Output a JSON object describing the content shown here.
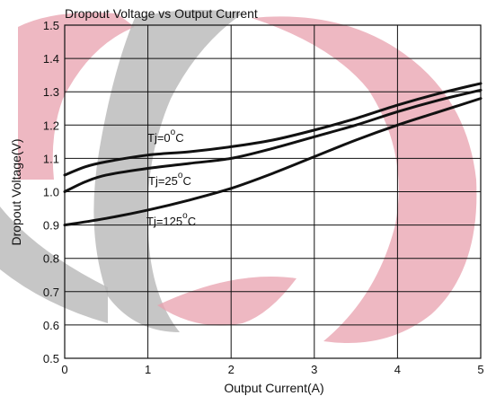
{
  "chart_data": {
    "type": "line",
    "title": "Dropout Voltage vs Output Current",
    "xlabel": "Output Current(A)",
    "ylabel": "Dropout Voltage(V)",
    "xlim": [
      0,
      5
    ],
    "ylim": [
      0.5,
      1.5
    ],
    "x_ticks": [
      "0",
      "1",
      "2",
      "3",
      "4",
      "5"
    ],
    "y_ticks": [
      "0.5",
      "0.6",
      "0.7",
      "0.8",
      "0.9",
      "1.0",
      "1.1",
      "1.2",
      "1.3",
      "1.4",
      "1.5"
    ],
    "grid": true,
    "series": [
      {
        "label": "Tj=0",
        "label_sup": "o",
        "label_unit": "C",
        "color": "#111111",
        "x": [
          0,
          0.25,
          0.5,
          1,
          1.5,
          2,
          2.5,
          3,
          3.5,
          4,
          4.5,
          5
        ],
        "y": [
          1.05,
          1.075,
          1.09,
          1.11,
          1.12,
          1.135,
          1.155,
          1.185,
          1.22,
          1.26,
          1.295,
          1.325
        ]
      },
      {
        "label": "Tj=25",
        "label_sup": "o",
        "label_unit": "C",
        "color": "#111111",
        "x": [
          0,
          0.25,
          0.5,
          1,
          1.5,
          2,
          2.5,
          3,
          3.5,
          4,
          4.5,
          5
        ],
        "y": [
          1.0,
          1.03,
          1.05,
          1.07,
          1.085,
          1.1,
          1.13,
          1.165,
          1.2,
          1.24,
          1.275,
          1.305
        ]
      },
      {
        "label": "Tj=125",
        "label_sup": "o",
        "label_unit": "C",
        "color": "#111111",
        "x": [
          0,
          0.5,
          1,
          1.5,
          2,
          2.5,
          3,
          3.5,
          4,
          4.5,
          5
        ],
        "y": [
          0.9,
          0.92,
          0.945,
          0.975,
          1.01,
          1.055,
          1.105,
          1.155,
          1.2,
          1.24,
          1.28
        ]
      }
    ]
  }
}
